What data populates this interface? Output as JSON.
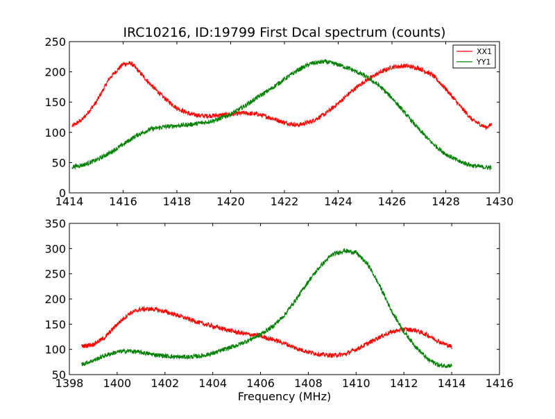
{
  "figure_title": "IRC10216, ID:19799 First Dcal spectrum (counts)",
  "colors": {
    "XX1": "#ff0000",
    "YY1": "#008000"
  },
  "chart_data": [
    {
      "type": "line",
      "title": "IRC10216, ID:19799 First Dcal spectrum (counts)",
      "xlabel": "",
      "ylabel": "",
      "xlim": [
        1414,
        1430
      ],
      "ylim": [
        0,
        250
      ],
      "xticks": [
        1414,
        1416,
        1418,
        1420,
        1422,
        1424,
        1426,
        1428,
        1430
      ],
      "yticks": [
        0,
        50,
        100,
        150,
        200,
        250
      ],
      "grid": false,
      "legend": "top-right",
      "series": [
        {
          "name": "XX1",
          "color": "#ff0000",
          "x": [
            1414.1,
            1414.5,
            1415.0,
            1415.5,
            1416.0,
            1416.3,
            1416.5,
            1417.0,
            1417.5,
            1418.0,
            1418.5,
            1419.0,
            1419.5,
            1420.0,
            1420.5,
            1421.0,
            1421.5,
            1422.0,
            1422.5,
            1423.0,
            1423.5,
            1424.0,
            1424.5,
            1425.0,
            1425.5,
            1426.0,
            1426.5,
            1427.0,
            1427.5,
            1428.0,
            1428.5,
            1429.0,
            1429.5,
            1429.7
          ],
          "y": [
            110,
            122,
            150,
            190,
            213,
            214,
            205,
            180,
            158,
            140,
            130,
            127,
            128,
            130,
            132,
            130,
            124,
            116,
            112,
            118,
            130,
            148,
            168,
            185,
            198,
            208,
            210,
            206,
            195,
            172,
            145,
            120,
            108,
            113
          ]
        },
        {
          "name": "YY1",
          "color": "#008000",
          "x": [
            1414.1,
            1414.5,
            1415.0,
            1415.5,
            1416.0,
            1416.5,
            1417.0,
            1417.5,
            1418.0,
            1418.5,
            1419.0,
            1419.5,
            1420.0,
            1420.5,
            1421.0,
            1421.5,
            1422.0,
            1422.5,
            1423.0,
            1423.5,
            1424.0,
            1424.5,
            1425.0,
            1425.5,
            1426.0,
            1426.5,
            1427.0,
            1427.5,
            1428.0,
            1428.5,
            1429.0,
            1429.5,
            1429.7
          ],
          "y": [
            43,
            46,
            54,
            66,
            80,
            95,
            105,
            109,
            111,
            113,
            116,
            121,
            130,
            143,
            158,
            172,
            188,
            203,
            214,
            217,
            212,
            204,
            193,
            178,
            157,
            131,
            105,
            82,
            64,
            52,
            45,
            42,
            42
          ]
        }
      ]
    },
    {
      "type": "line",
      "title": "",
      "xlabel": "Frequency (MHz)",
      "ylabel": "",
      "xlim": [
        1398,
        1416
      ],
      "ylim": [
        50,
        350
      ],
      "xticks": [
        1398,
        1400,
        1402,
        1404,
        1406,
        1408,
        1410,
        1412,
        1414,
        1416
      ],
      "yticks": [
        50,
        100,
        150,
        200,
        250,
        300,
        350
      ],
      "grid": false,
      "series": [
        {
          "name": "XX1",
          "color": "#ff0000",
          "x": [
            1398.5,
            1399.0,
            1399.5,
            1400.0,
            1400.5,
            1401.0,
            1401.5,
            1402.0,
            1402.5,
            1403.0,
            1403.5,
            1404.0,
            1404.5,
            1405.0,
            1405.5,
            1406.0,
            1406.5,
            1407.0,
            1407.5,
            1408.0,
            1408.5,
            1409.0,
            1409.5,
            1410.0,
            1410.5,
            1411.0,
            1411.5,
            1412.0,
            1412.5,
            1413.0,
            1413.5,
            1414.0
          ],
          "y": [
            106,
            110,
            124,
            150,
            171,
            180,
            180,
            175,
            168,
            160,
            152,
            146,
            140,
            134,
            130,
            126,
            120,
            112,
            102,
            95,
            90,
            88,
            90,
            100,
            112,
            125,
            135,
            140,
            138,
            128,
            115,
            105
          ]
        },
        {
          "name": "YY1",
          "color": "#008000",
          "x": [
            1398.5,
            1399.0,
            1399.5,
            1400.0,
            1400.5,
            1401.0,
            1401.5,
            1402.0,
            1402.5,
            1403.0,
            1403.5,
            1404.0,
            1404.5,
            1405.0,
            1405.5,
            1406.0,
            1406.5,
            1407.0,
            1407.5,
            1408.0,
            1408.5,
            1409.0,
            1409.5,
            1410.0,
            1410.5,
            1411.0,
            1411.5,
            1412.0,
            1412.5,
            1413.0,
            1413.5,
            1414.0
          ],
          "y": [
            70,
            78,
            88,
            95,
            97,
            94,
            90,
            87,
            85,
            85,
            87,
            92,
            100,
            108,
            118,
            130,
            145,
            168,
            200,
            235,
            265,
            288,
            296,
            292,
            268,
            225,
            175,
            135,
            105,
            80,
            68,
            68
          ]
        }
      ]
    }
  ]
}
